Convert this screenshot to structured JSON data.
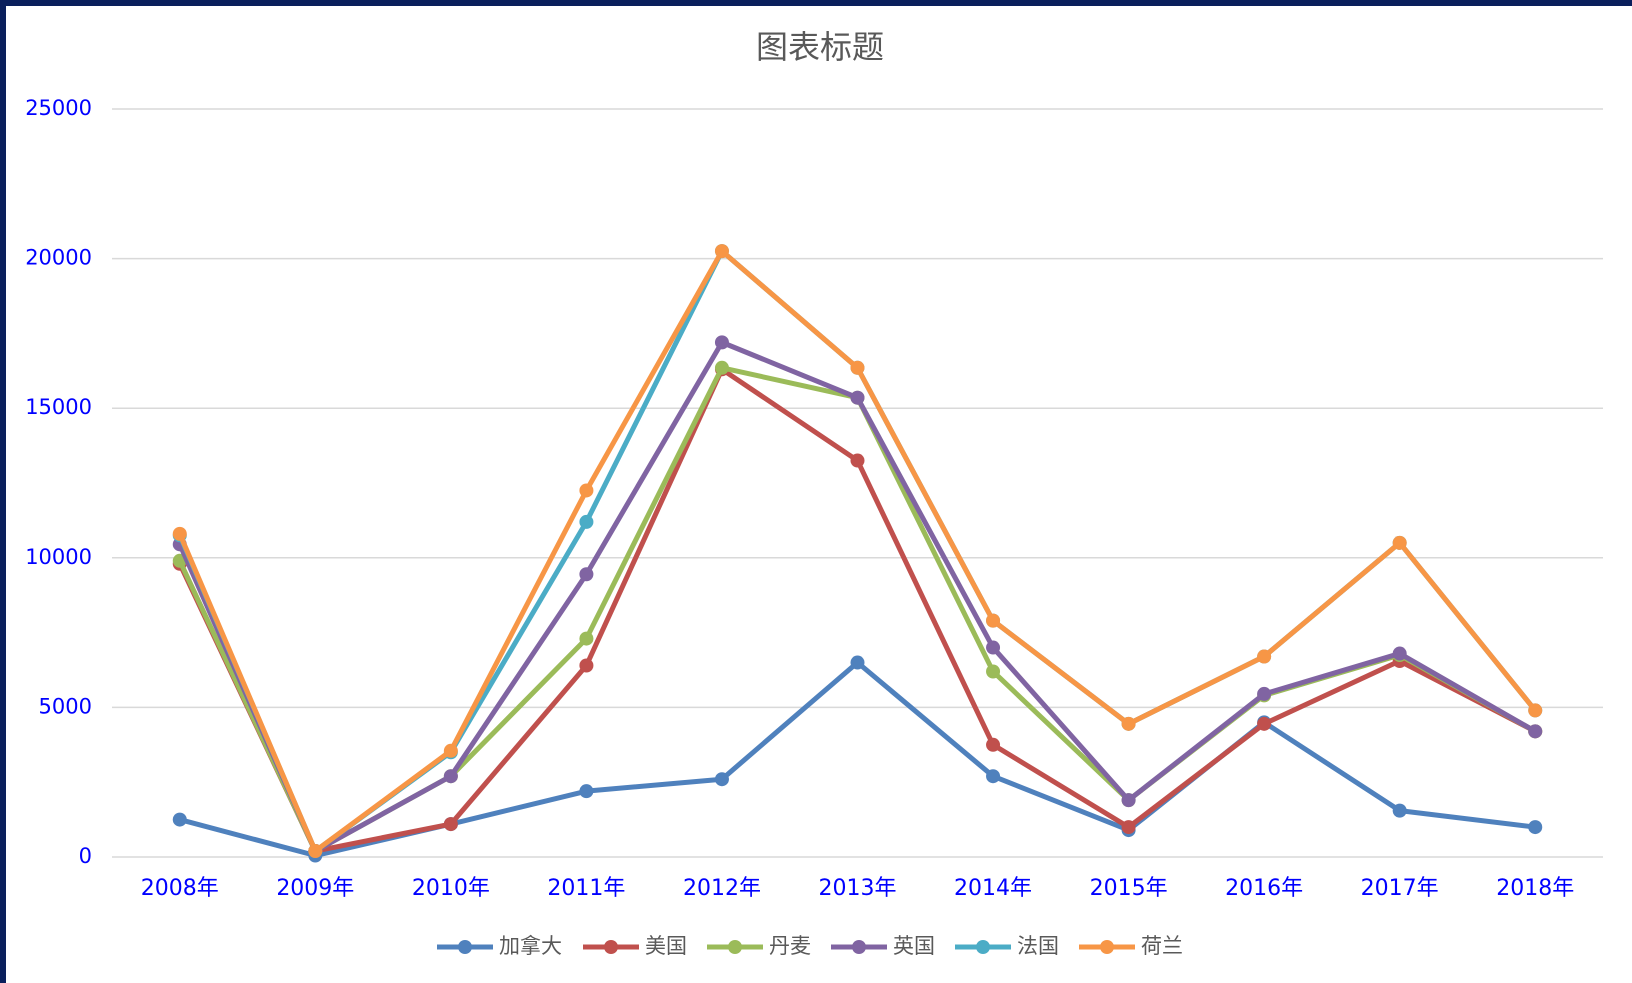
{
  "chart_data": {
    "type": "line",
    "title": "图表标题",
    "categories": [
      "2008年",
      "2009年",
      "2010年",
      "2011年",
      "2012年",
      "2013年",
      "2014年",
      "2015年",
      "2016年",
      "2017年",
      "2018年"
    ],
    "series": [
      {
        "name": "加拿大",
        "color": "#4f81bd",
        "values": [
          1250,
          50,
          1100,
          2200,
          2600,
          6500,
          2700,
          900,
          4500,
          1550,
          1000
        ]
      },
      {
        "name": "美国",
        "color": "#c0504d",
        "values": [
          9800,
          200,
          1100,
          6400,
          16300,
          13250,
          3750,
          1000,
          4450,
          6550,
          4200
        ]
      },
      {
        "name": "丹麦",
        "color": "#9bbb59",
        "values": [
          9900,
          200,
          2700,
          7300,
          16350,
          15350,
          6200,
          1900,
          5400,
          6750,
          4200
        ]
      },
      {
        "name": "英国",
        "color": "#8064a2",
        "values": [
          10450,
          200,
          2700,
          9450,
          17200,
          15350,
          7000,
          1900,
          5450,
          6800,
          4200
        ]
      },
      {
        "name": "法国",
        "color": "#4bacc6",
        "values": [
          10750,
          200,
          3500,
          11200,
          20250,
          16350,
          7900,
          4450,
          6700,
          10500,
          4900
        ]
      },
      {
        "name": "荷兰",
        "color": "#f79646",
        "values": [
          10800,
          200,
          3550,
          12250,
          20250,
          16350,
          7900,
          4450,
          6700,
          10500,
          4900
        ]
      }
    ],
    "ylim": [
      0,
      25000
    ],
    "yticks": [
      0,
      5000,
      10000,
      15000,
      20000,
      25000
    ],
    "grid": true,
    "legend": "bottom"
  }
}
